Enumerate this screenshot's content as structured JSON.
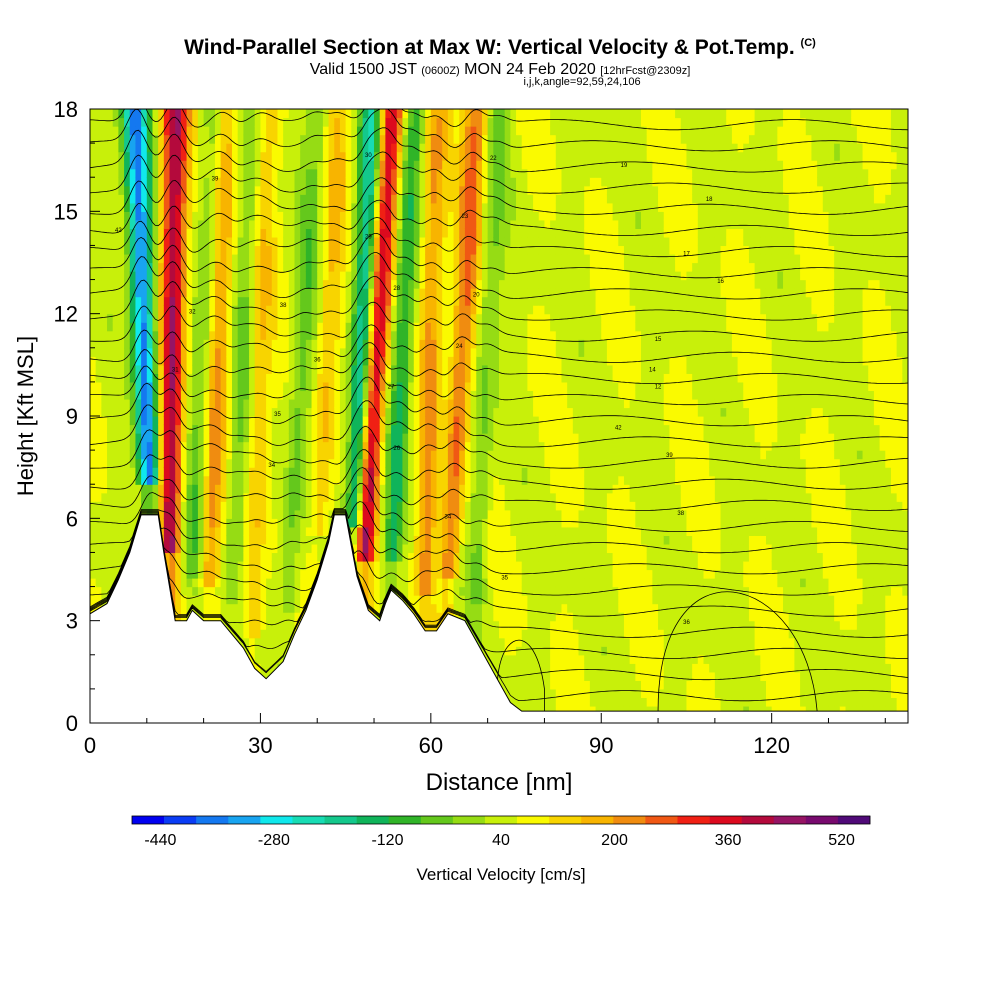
{
  "title": {
    "main": "Wind-Parallel Section at Max W: Vertical Velocity & Pot.Temp.",
    "copyright": "(C)",
    "valid_prefix": "Valid 1500 JST",
    "valid_utc": "(0600Z)",
    "valid_date": "MON 24 Feb 2020",
    "fcst": "[12hrFcst@2309z]",
    "indices": "i,j,k,angle=92,59,24,106"
  },
  "colors": {
    "scale": [
      "#0000f0",
      "#0a3cf5",
      "#1478f0",
      "#18a4f0",
      "#10e8ec",
      "#18dcb4",
      "#14c88c",
      "#10b45a",
      "#30b428",
      "#64c81c",
      "#96dc14",
      "#c8f00a",
      "#fafa00",
      "#f8d400",
      "#f8b400",
      "#f08c10",
      "#f05814",
      "#f02014",
      "#dc0a1e",
      "#b40a3c",
      "#961464",
      "#780a6e",
      "#500a78"
    ],
    "terrain": "#ffffff",
    "contour": "#000000"
  },
  "chart_data": {
    "type": "heatmap",
    "xlabel": "Distance [nm]",
    "ylabel": "Height [Kft MSL]",
    "xlim": [
      0,
      144
    ],
    "ylim": [
      0,
      18
    ],
    "xticks": [
      0,
      30,
      60,
      90,
      120
    ],
    "yticks": [
      0,
      3,
      6,
      9,
      12,
      15,
      18
    ],
    "colorbar": {
      "label": "Vertical Velocity [cm/s]",
      "ticks": [
        -440,
        -280,
        -120,
        40,
        200,
        360,
        520
      ],
      "min": -480,
      "max": 560
    },
    "wave_bands": [
      {
        "x_bottom": 11,
        "x_top": 8,
        "w": -430
      },
      {
        "x_bottom": 14,
        "x_top": 15,
        "w": 380
      },
      {
        "x_bottom": 18,
        "x_top": 22,
        "w": -110
      },
      {
        "x_bottom": 21,
        "x_top": 24,
        "w": 160
      },
      {
        "x_bottom": 25,
        "x_top": 29,
        "w": -90
      },
      {
        "x_bottom": 29,
        "x_top": 31,
        "w": 100
      },
      {
        "x_bottom": 35,
        "x_top": 40,
        "w": -100
      },
      {
        "x_bottom": 40,
        "x_top": 44,
        "w": 100
      },
      {
        "x_bottom": 46,
        "x_top": 50,
        "w": -300
      },
      {
        "x_bottom": 48,
        "x_top": 53,
        "w": 380
      },
      {
        "x_bottom": 53,
        "x_top": 57,
        "w": -200
      },
      {
        "x_bottom": 59,
        "x_top": 61,
        "w": 180
      },
      {
        "x_bottom": 63,
        "x_top": 68,
        "w": 230
      },
      {
        "x_bottom": 68,
        "x_top": 72,
        "w": -110
      }
    ],
    "terrain_profile": [
      {
        "x": 0,
        "h": 3.2
      },
      {
        "x": 3,
        "h": 3.5
      },
      {
        "x": 5,
        "h": 4.2
      },
      {
        "x": 7,
        "h": 5.0
      },
      {
        "x": 9,
        "h": 6.1
      },
      {
        "x": 12,
        "h": 6.1
      },
      {
        "x": 13,
        "h": 5.0
      },
      {
        "x": 14,
        "h": 4.0
      },
      {
        "x": 15,
        "h": 3.0
      },
      {
        "x": 17,
        "h": 3.0
      },
      {
        "x": 18,
        "h": 3.3
      },
      {
        "x": 20,
        "h": 3.0
      },
      {
        "x": 23,
        "h": 3.0
      },
      {
        "x": 25,
        "h": 2.6
      },
      {
        "x": 27,
        "h": 2.2
      },
      {
        "x": 29,
        "h": 1.6
      },
      {
        "x": 31,
        "h": 1.3
      },
      {
        "x": 34,
        "h": 1.8
      },
      {
        "x": 36,
        "h": 2.6
      },
      {
        "x": 38,
        "h": 3.3
      },
      {
        "x": 40,
        "h": 4.2
      },
      {
        "x": 42,
        "h": 5.3
      },
      {
        "x": 43,
        "h": 6.1
      },
      {
        "x": 45,
        "h": 6.1
      },
      {
        "x": 46,
        "h": 5.2
      },
      {
        "x": 47,
        "h": 4.3
      },
      {
        "x": 49,
        "h": 3.3
      },
      {
        "x": 51,
        "h": 3.0
      },
      {
        "x": 52,
        "h": 3.5
      },
      {
        "x": 53,
        "h": 3.9
      },
      {
        "x": 55,
        "h": 3.6
      },
      {
        "x": 57,
        "h": 3.2
      },
      {
        "x": 59,
        "h": 2.7
      },
      {
        "x": 61,
        "h": 2.7
      },
      {
        "x": 63,
        "h": 3.2
      },
      {
        "x": 66,
        "h": 3.0
      },
      {
        "x": 68,
        "h": 2.4
      },
      {
        "x": 70,
        "h": 1.8
      },
      {
        "x": 72,
        "h": 1.2
      },
      {
        "x": 74,
        "h": 0.6
      },
      {
        "x": 76,
        "h": 0.35
      },
      {
        "x": 144,
        "h": 0.35
      }
    ],
    "contour_labels": [
      "42",
      "39",
      "38",
      "36",
      "35",
      "34",
      "32",
      "31",
      "30",
      "29",
      "28",
      "27",
      "26",
      "24",
      "23",
      "22",
      "20",
      "19",
      "18",
      "17",
      "16",
      "15",
      "14",
      "12"
    ]
  }
}
